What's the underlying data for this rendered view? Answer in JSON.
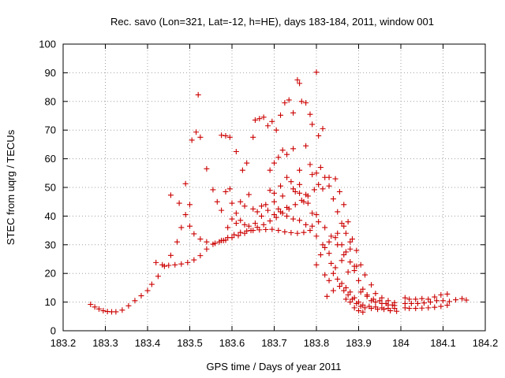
{
  "chart_data": {
    "type": "scatter",
    "title": "Rec. savo (Lon=321, Lat=-12, h=HE), days 183-184, 2011, window 001",
    "xlabel": "GPS time / Days of year 2011",
    "ylabel": "STEC from uqrg / TECUs",
    "xlim": [
      183.2,
      184.2
    ],
    "ylim": [
      0,
      100
    ],
    "xticks": [
      "183.2",
      "183.3",
      "183.4",
      "183.5",
      "183.6",
      "183.7",
      "183.8",
      "183.9",
      "184",
      "184.1",
      "184.2"
    ],
    "yticks": [
      "0",
      "10",
      "20",
      "30",
      "40",
      "50",
      "60",
      "70",
      "80",
      "90",
      "100"
    ],
    "grid": true,
    "marker": "plus",
    "color": "#cc0000",
    "points": [
      [
        183.265,
        9.2
      ],
      [
        183.275,
        8.3
      ],
      [
        183.285,
        7.6
      ],
      [
        183.295,
        7.0
      ],
      [
        183.305,
        6.7
      ],
      [
        183.315,
        6.6
      ],
      [
        183.325,
        6.6
      ],
      [
        183.34,
        7.2
      ],
      [
        183.355,
        8.7
      ],
      [
        183.37,
        10.5
      ],
      [
        183.385,
        12.2
      ],
      [
        183.4,
        14.0
      ],
      [
        183.41,
        16.2
      ],
      [
        183.425,
        19.0
      ],
      [
        183.44,
        22.5
      ],
      [
        183.455,
        26.3
      ],
      [
        183.47,
        31.0
      ],
      [
        183.48,
        36.0
      ],
      [
        183.49,
        40.5
      ],
      [
        183.5,
        44.0
      ],
      [
        183.455,
        47.3
      ],
      [
        183.475,
        44.5
      ],
      [
        183.49,
        51.3
      ],
      [
        183.505,
        66.5
      ],
      [
        183.515,
        69.3
      ],
      [
        183.525,
        67.5
      ],
      [
        183.52,
        82.3
      ],
      [
        183.42,
        23.8
      ],
      [
        183.435,
        23.0
      ],
      [
        183.45,
        22.8
      ],
      [
        183.465,
        23.0
      ],
      [
        183.48,
        23.3
      ],
      [
        183.495,
        23.8
      ],
      [
        183.51,
        24.7
      ],
      [
        183.525,
        26.2
      ],
      [
        183.54,
        28.5
      ],
      [
        183.555,
        30.2
      ],
      [
        183.57,
        31.0
      ],
      [
        183.585,
        31.6
      ],
      [
        183.6,
        32.5
      ],
      [
        183.615,
        33.2
      ],
      [
        183.63,
        34.0
      ],
      [
        183.645,
        35.0
      ],
      [
        183.66,
        36.1
      ],
      [
        183.675,
        37.0
      ],
      [
        183.69,
        38.3
      ],
      [
        183.705,
        39.5
      ],
      [
        183.72,
        41.0
      ],
      [
        183.735,
        42.5
      ],
      [
        183.75,
        44.0
      ],
      [
        183.765,
        45.5
      ],
      [
        183.78,
        47.0
      ],
      [
        183.795,
        49.2
      ],
      [
        183.5,
        36.5
      ],
      [
        183.51,
        33.8
      ],
      [
        183.525,
        32.0
      ],
      [
        183.54,
        31.0
      ],
      [
        183.56,
        30.5
      ],
      [
        183.575,
        31.5
      ],
      [
        183.59,
        32.5
      ],
      [
        183.605,
        33.5
      ],
      [
        183.62,
        34.3
      ],
      [
        183.635,
        34.8
      ],
      [
        183.65,
        35.0
      ],
      [
        183.665,
        35.2
      ],
      [
        183.68,
        35.3
      ],
      [
        183.695,
        35.4
      ],
      [
        183.71,
        35.0
      ],
      [
        183.725,
        34.5
      ],
      [
        183.74,
        34.2
      ],
      [
        183.755,
        34.0
      ],
      [
        183.77,
        34.3
      ],
      [
        183.785,
        35.0
      ],
      [
        183.8,
        33.0
      ],
      [
        183.815,
        30.0
      ],
      [
        183.83,
        27.0
      ],
      [
        183.54,
        56.5
      ],
      [
        183.555,
        49.2
      ],
      [
        183.575,
        68.2
      ],
      [
        183.585,
        68.0
      ],
      [
        183.595,
        67.5
      ],
      [
        183.61,
        62.5
      ],
      [
        183.625,
        56.0
      ],
      [
        183.635,
        58.5
      ],
      [
        183.65,
        67.5
      ],
      [
        183.655,
        73.5
      ],
      [
        183.665,
        74.0
      ],
      [
        183.675,
        74.5
      ],
      [
        183.685,
        71.5
      ],
      [
        183.695,
        73.0
      ],
      [
        183.705,
        70.0
      ],
      [
        183.715,
        75.2
      ],
      [
        183.725,
        79.5
      ],
      [
        183.735,
        80.5
      ],
      [
        183.745,
        76.0
      ],
      [
        183.755,
        87.5
      ],
      [
        183.76,
        86.3
      ],
      [
        183.765,
        80.0
      ],
      [
        183.775,
        79.5
      ],
      [
        183.785,
        75.5
      ],
      [
        183.79,
        72.0
      ],
      [
        183.8,
        90.2
      ],
      [
        183.805,
        68.0
      ],
      [
        183.815,
        70.5
      ],
      [
        183.565,
        45.0
      ],
      [
        183.575,
        42.0
      ],
      [
        183.585,
        48.5
      ],
      [
        183.595,
        49.5
      ],
      [
        183.6,
        44.5
      ],
      [
        183.61,
        41.0
      ],
      [
        183.62,
        45.0
      ],
      [
        183.63,
        43.5
      ],
      [
        183.64,
        47.5
      ],
      [
        183.65,
        42.5
      ],
      [
        183.66,
        41.5
      ],
      [
        183.67,
        43.5
      ],
      [
        183.68,
        44.0
      ],
      [
        183.69,
        49.0
      ],
      [
        183.7,
        45.0
      ],
      [
        183.71,
        42.5
      ],
      [
        183.72,
        47.0
      ],
      [
        183.73,
        43.0
      ],
      [
        183.74,
        52.0
      ],
      [
        183.75,
        48.5
      ],
      [
        183.76,
        48.0
      ],
      [
        183.77,
        45.0
      ],
      [
        183.78,
        44.5
      ],
      [
        183.79,
        41.0
      ],
      [
        183.8,
        40.5
      ],
      [
        183.58,
        31.5
      ],
      [
        183.59,
        36.0
      ],
      [
        183.6,
        39.0
      ],
      [
        183.61,
        37.5
      ],
      [
        183.62,
        38.5
      ],
      [
        183.63,
        37.0
      ],
      [
        183.64,
        36.5
      ],
      [
        183.655,
        37.5
      ],
      [
        183.67,
        40.0
      ],
      [
        183.685,
        42.0
      ],
      [
        183.7,
        40.5
      ],
      [
        183.715,
        41.5
      ],
      [
        183.73,
        40.0
      ],
      [
        183.745,
        39.0
      ],
      [
        183.76,
        38.5
      ],
      [
        183.775,
        37.0
      ],
      [
        183.79,
        36.5
      ],
      [
        183.805,
        38.0
      ],
      [
        183.82,
        36.0
      ],
      [
        183.835,
        33.0
      ],
      [
        183.85,
        30.0
      ],
      [
        183.865,
        26.5
      ],
      [
        183.69,
        56.0
      ],
      [
        183.7,
        58.5
      ],
      [
        183.71,
        60.5
      ],
      [
        183.72,
        63.0
      ],
      [
        183.73,
        61.5
      ],
      [
        183.745,
        63.5
      ],
      [
        183.76,
        56.0
      ],
      [
        183.775,
        64.5
      ],
      [
        183.785,
        58.0
      ],
      [
        183.8,
        55.0
      ],
      [
        183.81,
        57.0
      ],
      [
        183.82,
        53.5
      ],
      [
        183.83,
        50.5
      ],
      [
        183.84,
        46.0
      ],
      [
        183.85,
        41.5
      ],
      [
        183.86,
        37.5
      ],
      [
        183.87,
        34.0
      ],
      [
        183.88,
        31.0
      ],
      [
        183.7,
        48.0
      ],
      [
        183.715,
        50.5
      ],
      [
        183.73,
        53.5
      ],
      [
        183.745,
        49.5
      ],
      [
        183.76,
        51.0
      ],
      [
        183.775,
        47.5
      ],
      [
        183.79,
        54.5
      ],
      [
        183.805,
        51.0
      ],
      [
        183.815,
        49.5
      ],
      [
        183.83,
        53.5
      ],
      [
        183.845,
        53.0
      ],
      [
        183.855,
        48.5
      ],
      [
        183.865,
        44.0
      ],
      [
        183.875,
        38.0
      ],
      [
        183.885,
        32.0
      ],
      [
        183.895,
        28.0
      ],
      [
        183.8,
        23.0
      ],
      [
        183.81,
        26.5
      ],
      [
        183.82,
        29.0
      ],
      [
        183.83,
        31.0
      ],
      [
        183.845,
        32.5
      ],
      [
        183.86,
        30.0
      ],
      [
        183.87,
        27.5
      ],
      [
        183.88,
        24.0
      ],
      [
        183.89,
        21.0
      ],
      [
        183.9,
        17.5
      ],
      [
        183.91,
        14.5
      ],
      [
        183.92,
        12.0
      ],
      [
        183.93,
        10.5
      ],
      [
        183.82,
        19.5
      ],
      [
        183.83,
        17.5
      ],
      [
        183.84,
        20.0
      ],
      [
        183.85,
        18.0
      ],
      [
        183.86,
        16.5
      ],
      [
        183.87,
        15.0
      ],
      [
        183.88,
        13.5
      ],
      [
        183.89,
        11.5
      ],
      [
        183.9,
        10.0
      ],
      [
        183.91,
        9.0
      ],
      [
        183.925,
        8.5
      ],
      [
        183.94,
        8.3
      ],
      [
        183.955,
        8.0
      ],
      [
        183.97,
        7.8
      ],
      [
        183.985,
        7.8
      ],
      [
        183.825,
        12.0
      ],
      [
        183.84,
        14.0
      ],
      [
        183.855,
        15.5
      ],
      [
        183.865,
        14.0
      ],
      [
        183.875,
        12.5
      ],
      [
        183.885,
        11.0
      ],
      [
        183.895,
        9.5
      ],
      [
        183.905,
        8.5
      ],
      [
        183.915,
        8.0
      ],
      [
        183.93,
        7.8
      ],
      [
        183.945,
        7.5
      ],
      [
        183.96,
        7.5
      ],
      [
        183.975,
        7.0
      ],
      [
        183.99,
        6.8
      ],
      [
        183.835,
        23.5
      ],
      [
        183.845,
        22.0
      ],
      [
        183.86,
        24.5
      ],
      [
        183.875,
        20.5
      ],
      [
        183.89,
        22.5
      ],
      [
        183.905,
        23.0
      ],
      [
        183.915,
        19.5
      ],
      [
        183.93,
        16.0
      ],
      [
        183.94,
        13.0
      ],
      [
        183.955,
        11.5
      ],
      [
        183.97,
        10.5
      ],
      [
        183.985,
        9.8
      ],
      [
        183.85,
        34.0
      ],
      [
        183.865,
        36.5
      ],
      [
        183.88,
        28.5
      ],
      [
        183.895,
        22.5
      ],
      [
        183.905,
        13.5
      ],
      [
        183.92,
        12.5
      ],
      [
        183.935,
        11.0
      ],
      [
        183.95,
        10.5
      ],
      [
        183.965,
        9.5
      ],
      [
        183.98,
        9.0
      ],
      [
        183.87,
        11.0
      ],
      [
        183.88,
        10.0
      ],
      [
        183.89,
        8.0
      ],
      [
        183.9,
        7.0
      ],
      [
        183.91,
        6.5
      ],
      [
        183.94,
        10.0
      ],
      [
        183.955,
        9.5
      ],
      [
        183.97,
        9.0
      ],
      [
        183.985,
        8.8
      ],
      [
        184.01,
        8.0
      ],
      [
        184.02,
        7.8
      ],
      [
        184.035,
        7.8
      ],
      [
        184.05,
        7.9
      ],
      [
        184.065,
        8.0
      ],
      [
        184.08,
        8.2
      ],
      [
        184.095,
        8.5
      ],
      [
        184.11,
        8.9
      ],
      [
        184.01,
        9.5
      ],
      [
        184.025,
        9.5
      ],
      [
        184.04,
        9.5
      ],
      [
        184.055,
        9.7
      ],
      [
        184.07,
        10.0
      ],
      [
        184.085,
        10.5
      ],
      [
        184.1,
        10.5
      ],
      [
        184.115,
        10.2
      ],
      [
        184.13,
        10.8
      ],
      [
        184.145,
        11.2
      ],
      [
        184.155,
        10.7
      ],
      [
        184.01,
        11.5
      ],
      [
        184.02,
        11.0
      ],
      [
        184.035,
        11.0
      ],
      [
        184.05,
        11.2
      ],
      [
        184.065,
        11.0
      ],
      [
        184.08,
        11.8
      ],
      [
        184.095,
        12.5
      ],
      [
        184.11,
        12.8
      ]
    ]
  }
}
